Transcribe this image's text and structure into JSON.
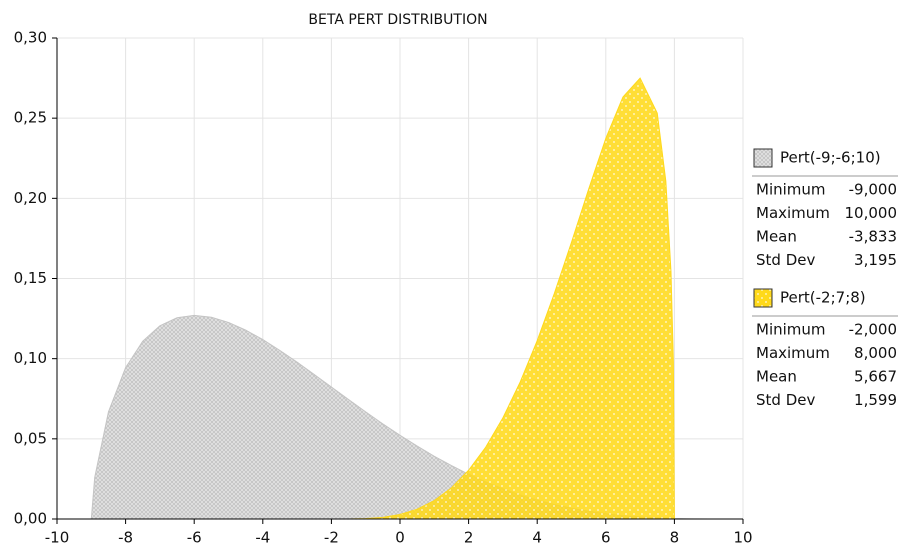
{
  "chart_data": {
    "type": "area",
    "title": "BETA PERT DISTRIBUTION",
    "x": [
      -10,
      -9.5,
      -9,
      -8.9,
      -8.5,
      -8,
      -7.5,
      -7,
      -6.5,
      -6,
      -5.5,
      -5,
      -4.5,
      -4,
      -3.5,
      -3,
      -2.5,
      -2,
      -1.5,
      -1,
      -0.5,
      0,
      0.5,
      1,
      1.5,
      2,
      2.5,
      3,
      3.5,
      4,
      4.5,
      5,
      5.5,
      6,
      6.5,
      7,
      7.5,
      7.75,
      7.9,
      7.97,
      8,
      8.5,
      9,
      9.5,
      10
    ],
    "series": [
      {
        "name": "Pert(-9;-6;10)",
        "color": "#c4c4c4",
        "pattern": "crosshatch",
        "values": [
          0,
          0,
          0,
          0.026,
          0.0668,
          0.0944,
          0.1109,
          0.1205,
          0.1255,
          0.127,
          0.1258,
          0.1226,
          0.1178,
          0.1119,
          0.1051,
          0.0978,
          0.0901,
          0.0823,
          0.0745,
          0.0668,
          0.0593,
          0.0522,
          0.0455,
          0.0391,
          0.0333,
          0.0279,
          0.0231,
          0.0188,
          0.015,
          0.0118,
          0.009,
          0.0067,
          0.0048,
          0.0033,
          0.0021,
          0.0013,
          0.0007,
          0.0005,
          0.0004,
          0.0004,
          0.0003,
          0.0001,
          0,
          0,
          0
        ],
        "stats": [
          [
            "Minimum",
            "-9,000"
          ],
          [
            "Maximum",
            "10,000"
          ],
          [
            "Mean",
            "-3,833"
          ],
          [
            "Std Dev",
            "3,195"
          ]
        ]
      },
      {
        "name": "Pert(-2;7;8)",
        "color": "#ffd91a",
        "pattern": "dots",
        "values": [
          0,
          0,
          0,
          0,
          0,
          0,
          0,
          0,
          0,
          0,
          0,
          0,
          0,
          0,
          0,
          0,
          0,
          0,
          0,
          0.0002,
          0.001,
          0.0028,
          0.0061,
          0.0115,
          0.0194,
          0.0304,
          0.0448,
          0.0631,
          0.0852,
          0.1112,
          0.1407,
          0.1726,
          0.2057,
          0.2374,
          0.2632,
          0.275,
          0.2531,
          0.2107,
          0.1543,
          0.0977,
          0,
          0,
          0,
          0,
          0
        ],
        "stats": [
          [
            "Minimum",
            "-2,000"
          ],
          [
            "Maximum",
            "8,000"
          ],
          [
            "Mean",
            "5,667"
          ],
          [
            "Std Dev",
            "1,599"
          ]
        ]
      }
    ],
    "xlim": [
      -10,
      10
    ],
    "xticks": [
      -10,
      -8,
      -6,
      -4,
      -2,
      0,
      2,
      4,
      6,
      8,
      10
    ],
    "ylim": [
      0,
      0.3
    ],
    "yticks": [
      {
        "value": 0,
        "label": "0,00"
      },
      {
        "value": 0.05,
        "label": "0,05"
      },
      {
        "value": 0.1,
        "label": "0,10"
      },
      {
        "value": 0.15,
        "label": "0,15"
      },
      {
        "value": 0.2,
        "label": "0,20"
      },
      {
        "value": 0.25,
        "label": "0,25"
      },
      {
        "value": 0.3,
        "label": "0,30"
      }
    ],
    "grid": true
  }
}
